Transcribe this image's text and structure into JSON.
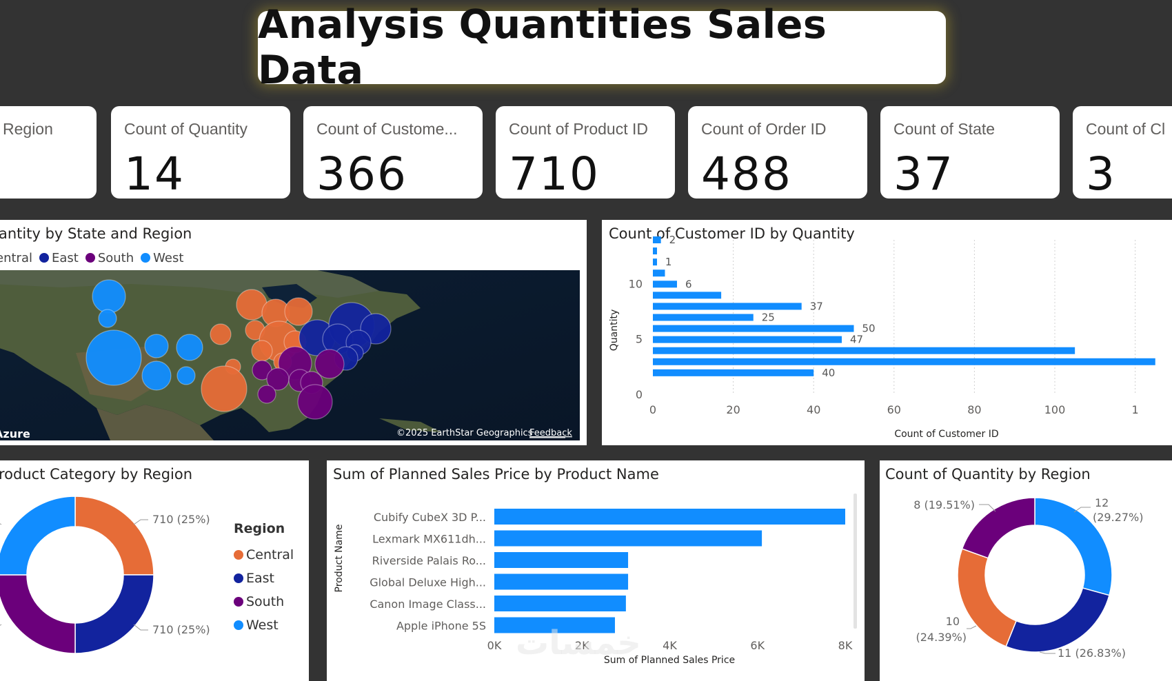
{
  "title": "Analysis Quantities Sales Data",
  "kpis": [
    {
      "label": "Region",
      "value": ""
    },
    {
      "label": "Count of Quantity",
      "value": "14"
    },
    {
      "label": "Count of Custome...",
      "value": "366"
    },
    {
      "label": "Count of Product ID",
      "value": "710"
    },
    {
      "label": "Count of Order ID",
      "value": "488"
    },
    {
      "label": "Count of State",
      "value": "37"
    },
    {
      "label": "Count of Cl",
      "value": "3"
    }
  ],
  "map": {
    "title": "antity by State and Region",
    "legend": [
      {
        "name": "entral",
        "color": "#E66C37"
      },
      {
        "name": "East",
        "color": "#12239E"
      },
      {
        "name": "South",
        "color": "#6B007B"
      },
      {
        "name": "West",
        "color": "#118DFF"
      }
    ],
    "attribution": "©2025 EarthStar Geographics",
    "feedback": "Feedback",
    "azure": "Azure"
  },
  "colors": {
    "central": "#E66C37",
    "east": "#12239E",
    "south": "#6B007B",
    "west": "#118DFF"
  },
  "chart_data": [
    {
      "type": "bar",
      "orientation": "horizontal",
      "title": "Count of Customer ID by Quantity",
      "xlabel": "Count of Customer ID",
      "ylabel": "Quantity",
      "xlim": [
        0,
        120
      ],
      "ylim": [
        0,
        14
      ],
      "x_ticks": [
        "0",
        "20",
        "40",
        "60",
        "80",
        "100",
        "1"
      ],
      "y_ticks": [
        "0",
        "5",
        "10"
      ],
      "bars": [
        {
          "q": 14,
          "v": 2,
          "label": "2"
        },
        {
          "q": 13,
          "v": 1,
          "label": ""
        },
        {
          "q": 12,
          "v": 1,
          "label": "1"
        },
        {
          "q": 11,
          "v": 3,
          "label": ""
        },
        {
          "q": 10,
          "v": 6,
          "label": "6"
        },
        {
          "q": 9,
          "v": 17,
          "label": ""
        },
        {
          "q": 8,
          "v": 37,
          "label": "37"
        },
        {
          "q": 7,
          "v": 25,
          "label": "25"
        },
        {
          "q": 6,
          "v": 50,
          "label": "50"
        },
        {
          "q": 5,
          "v": 47,
          "label": "47"
        },
        {
          "q": 4,
          "v": 105,
          "label": ""
        },
        {
          "q": 3,
          "v": 125,
          "label": ""
        },
        {
          "q": 2,
          "v": 40,
          "label": "40"
        }
      ]
    },
    {
      "type": "pie",
      "title": "roduct Category by Region",
      "legend_title": "Region",
      "series": [
        {
          "name": "Central",
          "value": 710,
          "label": "710 (25%)"
        },
        {
          "name": "East",
          "value": 710,
          "label": "710 (25%)"
        },
        {
          "name": "South",
          "value": 710,
          "label": ""
        },
        {
          "name": "West",
          "value": 710,
          "label": ""
        }
      ]
    },
    {
      "type": "bar",
      "orientation": "horizontal",
      "title": "Sum of Planned Sales Price by Product Name",
      "xlabel": "Sum of Planned Sales Price",
      "ylabel": "Product Name",
      "xlim": [
        0,
        8000
      ],
      "x_ticks": [
        "0K",
        "2K",
        "4K",
        "6K",
        "8K"
      ],
      "categories": [
        "Cubify CubeX 3D P...",
        "Lexmark MX611dh...",
        "Riverside Palais Ro...",
        "Global Deluxe High...",
        "Canon Image Class...",
        "Apple iPhone 5S"
      ],
      "values": [
        8000,
        6100,
        3050,
        3050,
        3000,
        2750
      ]
    },
    {
      "type": "pie",
      "title": "Count of Quantity by Region",
      "series": [
        {
          "name": "West",
          "value": 12,
          "label_a": "12",
          "label_b": "(29.27%)"
        },
        {
          "name": "East",
          "value": 11,
          "label_a": "11 (26.83%)",
          "label_b": ""
        },
        {
          "name": "Central",
          "value": 10,
          "label_a": "10",
          "label_b": "(24.39%)"
        },
        {
          "name": "South",
          "value": 8,
          "label_a": "8 (19.51%)",
          "label_b": ""
        }
      ]
    }
  ],
  "watermark": "خمسات"
}
